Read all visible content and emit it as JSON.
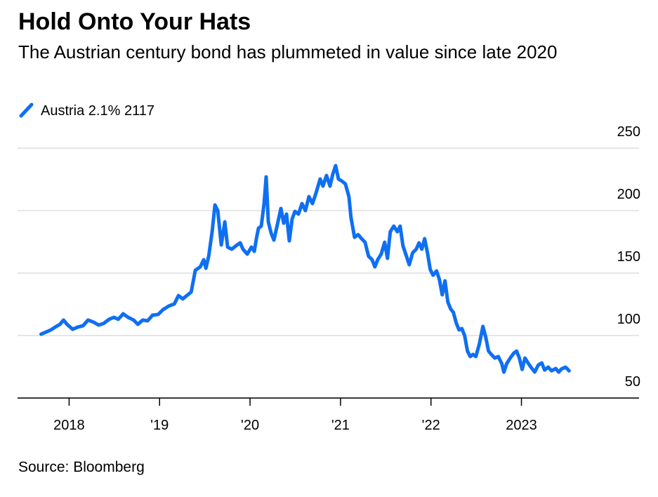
{
  "chart_data": {
    "type": "line",
    "title": "Hold Onto Your Hats",
    "subtitle": "The Austrian century bond has plummeted in value since late 2020",
    "source": "Source: Bloomberg",
    "xlim": [
      2017.43,
      2024.3
    ],
    "xticks": [
      2018,
      {
        "value": 2019,
        "label": "'19"
      },
      {
        "value": 2020,
        "label": "'20"
      },
      {
        "value": 2021,
        "label": "'21"
      },
      {
        "value": 2022,
        "label": "'22"
      },
      2023
    ],
    "ylim": [
      50,
      250
    ],
    "yticks": [
      50,
      100,
      150,
      200,
      250
    ],
    "grid": true,
    "legend": "top-left",
    "x": [
      2017.69,
      2017.744,
      2017.798,
      2017.845,
      2017.899,
      2017.938,
      2017.977,
      2018.039,
      2018.093,
      2018.155,
      2018.209,
      2018.271,
      2018.326,
      2018.38,
      2018.442,
      2018.496,
      2018.543,
      2018.597,
      2018.651,
      2018.713,
      2018.76,
      2018.814,
      2018.868,
      2018.922,
      2018.984,
      2019.039,
      2019.101,
      2019.163,
      2019.209,
      2019.256,
      2019.318,
      2019.349,
      2019.395,
      2019.45,
      2019.488,
      2019.512,
      2019.543,
      2019.581,
      2019.612,
      2019.643,
      2019.682,
      2019.721,
      2019.752,
      2019.798,
      2019.845,
      2019.891,
      2019.922,
      2019.969,
      2020.016,
      2020.047,
      2020.07,
      2020.093,
      2020.124,
      2020.155,
      2020.178,
      2020.202,
      2020.233,
      2020.264,
      2020.302,
      2020.341,
      2020.372,
      2020.403,
      2020.434,
      2020.465,
      2020.496,
      2020.535,
      2020.574,
      2020.612,
      2020.651,
      2020.69,
      2020.729,
      2020.775,
      2020.806,
      2020.845,
      2020.884,
      2020.915,
      2020.946,
      2020.977,
      2021.016,
      2021.054,
      2021.093,
      2021.116,
      2021.155,
      2021.194,
      2021.233,
      2021.271,
      2021.31,
      2021.349,
      2021.38,
      2021.411,
      2021.45,
      2021.488,
      2021.519,
      2021.55,
      2021.589,
      2021.628,
      2021.659,
      2021.69,
      2021.721,
      2021.76,
      2021.798,
      2021.837,
      2021.868,
      2021.899,
      2021.93,
      2021.961,
      2021.992,
      2022.023,
      2022.062,
      2022.093,
      2022.124,
      2022.155,
      2022.186,
      2022.217,
      2022.248,
      2022.279,
      2022.31,
      2022.341,
      2022.372,
      2022.403,
      2022.434,
      2022.465,
      2022.496,
      2022.535,
      2022.574,
      2022.605,
      2022.636,
      2022.667,
      2022.705,
      2022.744,
      2022.783,
      2022.806,
      2022.837,
      2022.876,
      2022.915,
      2022.946,
      2022.977,
      2023.008,
      2023.039,
      2023.078,
      2023.116,
      2023.147,
      2023.186,
      2023.225,
      2023.256,
      2023.295,
      2023.333,
      2023.38,
      2023.411,
      2023.442,
      2023.488,
      2023.527
    ],
    "series": [
      {
        "name": "Austria 2.1% 2117",
        "color": "#0f6ff2",
        "values": [
          101.1,
          102.8,
          104.5,
          106.7,
          109,
          112.4,
          109,
          105,
          106.7,
          107.9,
          112.4,
          110.7,
          108.4,
          109.6,
          113,
          114.6,
          113,
          117.4,
          114.6,
          112.4,
          109,
          112.4,
          111.8,
          116.3,
          116.9,
          120.8,
          123.6,
          125.3,
          132,
          129.3,
          133,
          134.8,
          152.2,
          155,
          160.7,
          153.9,
          163.5,
          183.1,
          204.5,
          200,
          172.5,
          191,
          170.8,
          169.1,
          171.9,
          174.2,
          169.1,
          165.2,
          170.8,
          167.4,
          177.5,
          185.9,
          187.6,
          205.6,
          227,
          191,
          182,
          176.4,
          188.8,
          201.7,
          189.9,
          197.2,
          175.8,
          193.3,
          199.4,
          197.2,
          205.6,
          200,
          211.2,
          205.6,
          214,
          225.3,
          219.6,
          228.1,
          219.6,
          229.2,
          236,
          225.3,
          223.6,
          221.3,
          211.2,
          194.4,
          178.6,
          180.8,
          177.5,
          174.7,
          163.5,
          160.7,
          155,
          160.7,
          165.2,
          174.7,
          161.8,
          183.1,
          187.6,
          183.1,
          187.6,
          171.9,
          165.2,
          156.7,
          166.3,
          169.1,
          174.2,
          169.1,
          177.5,
          166.3,
          152.8,
          148.3,
          151.7,
          144.9,
          132.6,
          143.8,
          127,
          121.3,
          118.5,
          110.1,
          104.5,
          105.6,
          100,
          87.6,
          83.2,
          84.9,
          83.2,
          93.3,
          107.3,
          98.9,
          87.6,
          84.9,
          82,
          83.2,
          77.5,
          70.7,
          77.5,
          82,
          85.9,
          87.6,
          82,
          72.9,
          82,
          77.5,
          73.6,
          70.8,
          76.4,
          78.1,
          72.4,
          74.7,
          71.8,
          73.6,
          70.7,
          73.2,
          74.7,
          71.8
        ]
      }
    ]
  }
}
